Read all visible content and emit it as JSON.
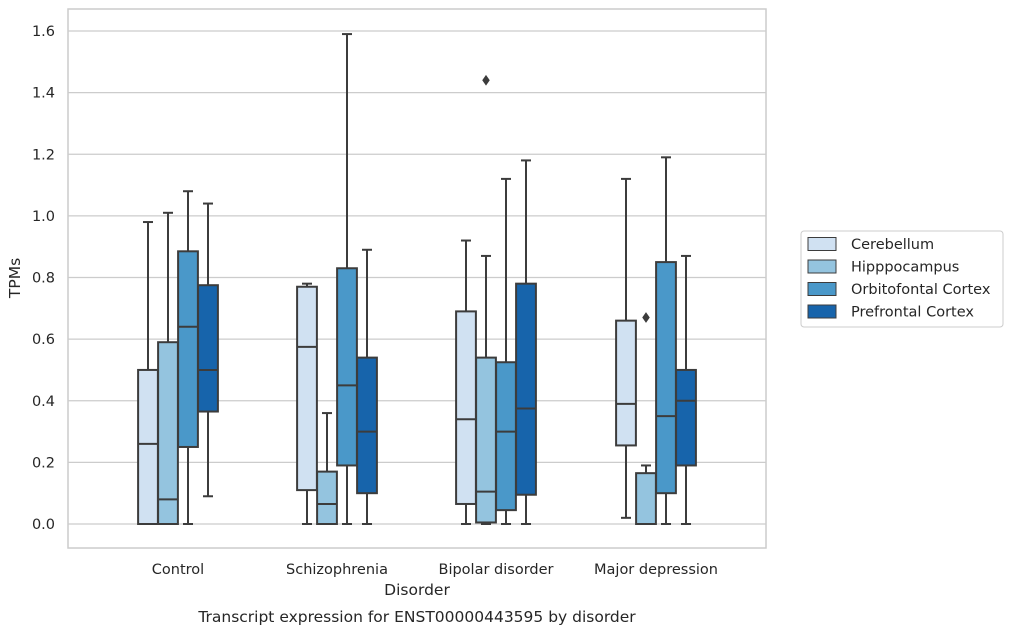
{
  "chart_data": {
    "type": "box",
    "caption": "Transcript expression for ENST00000443595 by disorder",
    "xlabel": "Disorder",
    "ylabel": "TPMs",
    "ylim": [
      -0.08,
      1.67
    ],
    "yticks": [
      0.0,
      0.2,
      0.4,
      0.6,
      0.8,
      1.0,
      1.2,
      1.4,
      1.6
    ],
    "ytick_labels": [
      "0.0",
      "0.2",
      "0.4",
      "0.6",
      "0.8",
      "1.0",
      "1.2",
      "1.4",
      "1.6"
    ],
    "grid": true,
    "legend_position": "right",
    "categories": [
      "Control",
      "Schizophrenia",
      "Bipolar disorder",
      "Major depression"
    ],
    "series": [
      {
        "name": "Cerebellum",
        "color": "#d0e1f2",
        "boxes": [
          {
            "whislo": 0.0,
            "q1": 0.0,
            "med": 0.26,
            "q3": 0.5,
            "whishi": 0.98,
            "fliers": []
          },
          {
            "whislo": 0.0,
            "q1": 0.11,
            "med": 0.575,
            "q3": 0.77,
            "whishi": 0.78,
            "fliers": []
          },
          {
            "whislo": 0.0,
            "q1": 0.065,
            "med": 0.34,
            "q3": 0.69,
            "whishi": 0.92,
            "fliers": []
          },
          {
            "whislo": 0.02,
            "q1": 0.255,
            "med": 0.39,
            "q3": 0.66,
            "whishi": 1.12,
            "fliers": []
          }
        ]
      },
      {
        "name": "Hipppocampus",
        "color": "#94c4df",
        "boxes": [
          {
            "whislo": 0.0,
            "q1": 0.0,
            "med": 0.08,
            "q3": 0.59,
            "whishi": 1.01,
            "fliers": []
          },
          {
            "whislo": 0.0,
            "q1": 0.0,
            "med": 0.065,
            "q3": 0.17,
            "whishi": 0.36,
            "fliers": []
          },
          {
            "whislo": 0.0,
            "q1": 0.005,
            "med": 0.105,
            "q3": 0.54,
            "whishi": 0.87,
            "fliers": [
              1.44
            ]
          },
          {
            "whislo": 0.0,
            "q1": 0.0,
            "med": 0.0,
            "q3": 0.165,
            "whishi": 0.19,
            "fliers": [
              0.67
            ]
          }
        ]
      },
      {
        "name": "Orbitofontal Cortex",
        "color": "#4a98c9",
        "boxes": [
          {
            "whislo": 0.0,
            "q1": 0.25,
            "med": 0.64,
            "q3": 0.885,
            "whishi": 1.08,
            "fliers": []
          },
          {
            "whislo": 0.0,
            "q1": 0.19,
            "med": 0.45,
            "q3": 0.83,
            "whishi": 1.59,
            "fliers": []
          },
          {
            "whislo": 0.0,
            "q1": 0.045,
            "med": 0.3,
            "q3": 0.525,
            "whishi": 1.12,
            "fliers": []
          },
          {
            "whislo": 0.0,
            "q1": 0.1,
            "med": 0.35,
            "q3": 0.85,
            "whishi": 1.19,
            "fliers": []
          }
        ]
      },
      {
        "name": "Prefrontal Cortex",
        "color": "#1764ab",
        "boxes": [
          {
            "whislo": 0.09,
            "q1": 0.365,
            "med": 0.5,
            "q3": 0.775,
            "whishi": 1.04,
            "fliers": []
          },
          {
            "whislo": 0.0,
            "q1": 0.1,
            "med": 0.3,
            "q3": 0.54,
            "whishi": 0.89,
            "fliers": []
          },
          {
            "whislo": 0.0,
            "q1": 0.095,
            "med": 0.375,
            "q3": 0.78,
            "whishi": 1.18,
            "fliers": []
          },
          {
            "whislo": 0.0,
            "q1": 0.19,
            "med": 0.4,
            "q3": 0.5,
            "whishi": 0.87,
            "fliers": []
          }
        ]
      }
    ]
  }
}
